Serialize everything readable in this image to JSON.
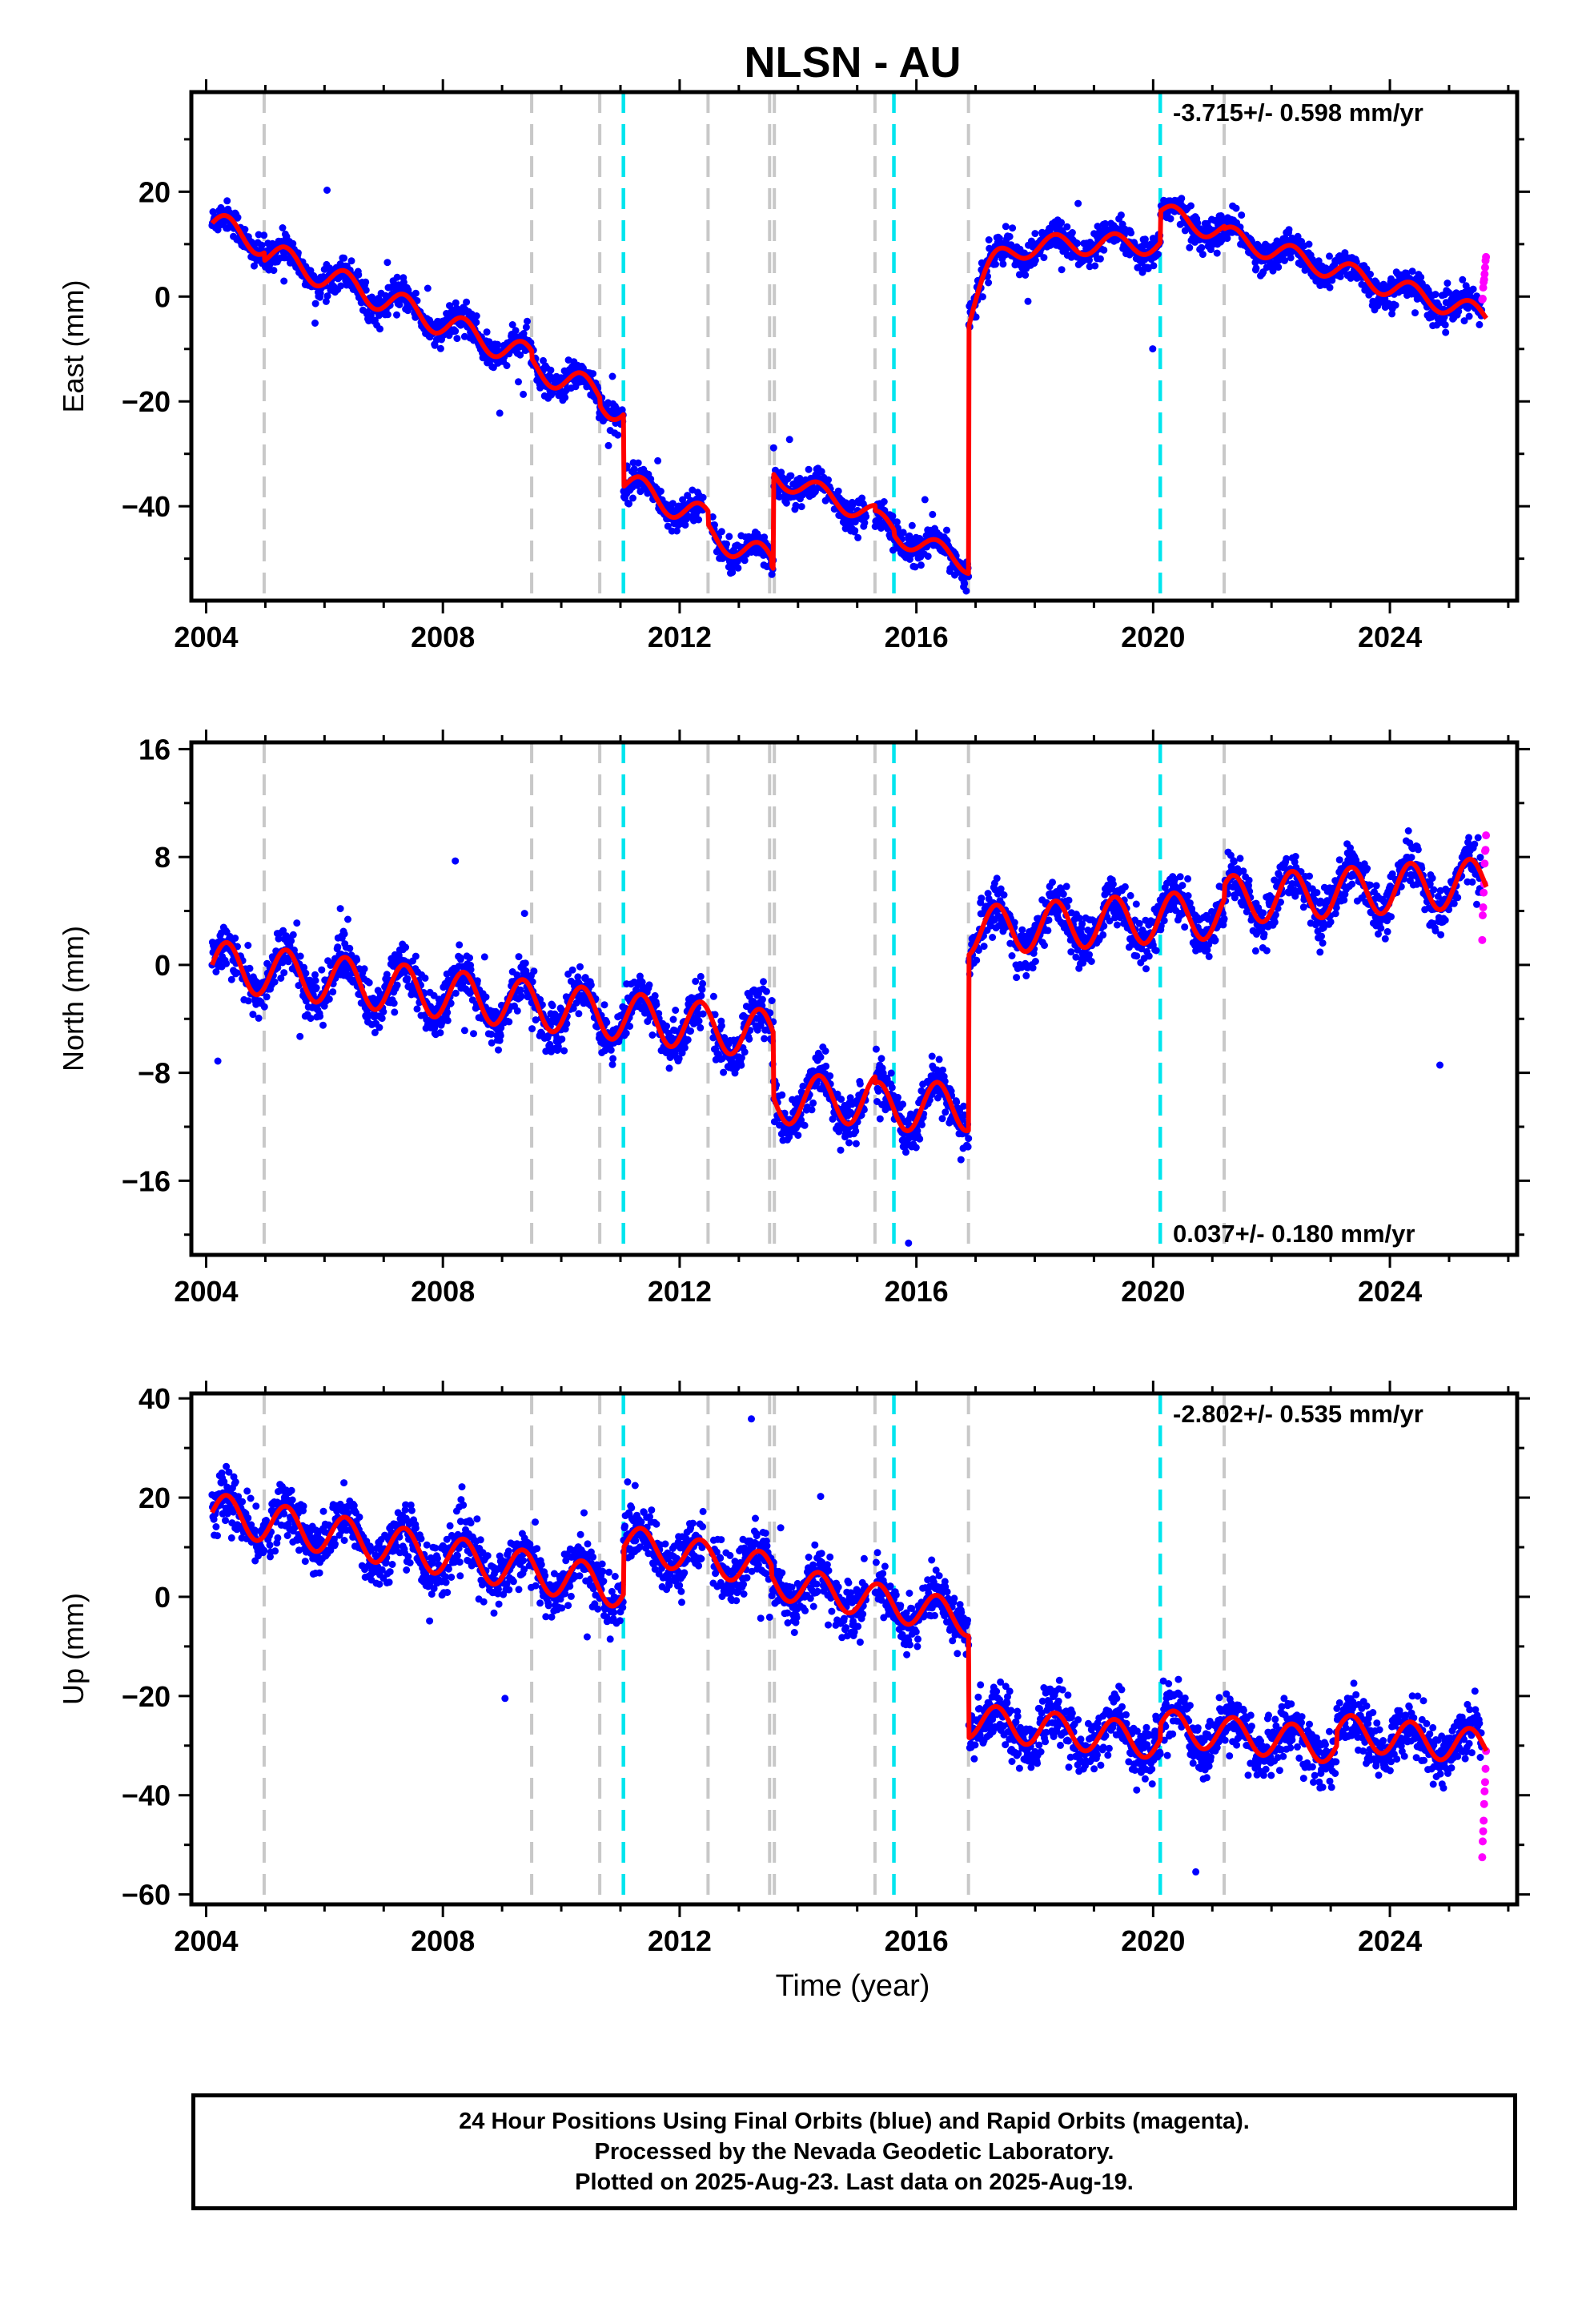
{
  "title": "NLSN - AU",
  "xlabel": "Time (year)",
  "footer": {
    "line1": "24 Hour Positions Using Final Orbits (blue) and Rapid Orbits (magenta).",
    "line2": "Processed by the Nevada Geodetic Laboratory.",
    "line3": "Plotted on 2025-Aug-23. Last data on 2025-Aug-19."
  },
  "colors": {
    "final_orbits": "#0000ff",
    "rapid_orbits": "#ff00ff",
    "model": "#ff0000",
    "equipment_change": "#c8c8c8",
    "earthquake": "#00e5ee"
  },
  "chart_data": [
    {
      "type": "scatter",
      "component": "east",
      "ylabel": "East (mm)",
      "velocity": "-3.715+/- 0.598 mm/yr",
      "velocity_position": "top-right",
      "xlim": [
        2003.75,
        2026.15
      ],
      "ylim": [
        -58,
        39
      ],
      "xticks": [
        2004,
        2008,
        2012,
        2016,
        2020,
        2024
      ],
      "yticks": [
        -40,
        -20,
        0,
        20
      ],
      "segments": [
        {
          "start": 2004.1,
          "end": 2011.05,
          "level": 14,
          "rate": -4.5,
          "amp": 2.5
        },
        {
          "start": 2011.05,
          "end": 2013.58,
          "level": -35.5,
          "rate": -5.0,
          "amp": 2.5
        },
        {
          "start": 2013.58,
          "end": 2016.88,
          "level": -34,
          "rate": -4.5,
          "amp": 2.0
        },
        {
          "start": 2016.88,
          "end": 2020.12,
          "level": 10,
          "rate": 0,
          "amp": 2.0,
          "transient": 14,
          "tau": 0.32
        },
        {
          "start": 2020.12,
          "end": 2025.63,
          "level": 16,
          "rate": -3.5,
          "amp": 2.0
        }
      ],
      "steps": [
        [
          2004.98,
          -1.5
        ],
        [
          2009.5,
          -1.5
        ],
        [
          2010.65,
          -1.5
        ],
        [
          2012.48,
          -2.5
        ],
        [
          2013.55,
          -1.5
        ],
        [
          2015.3,
          -1.0
        ],
        [
          2015.62,
          -1.0
        ],
        [
          2021.2,
          -0.5
        ]
      ],
      "noise": 2.6,
      "rapid": [
        -1,
        8
      ]
    },
    {
      "type": "scatter",
      "component": "north",
      "ylabel": "North (mm)",
      "velocity": "0.037+/- 0.180 mm/yr",
      "velocity_position": "bottom-right",
      "xlim": [
        2003.75,
        2026.15
      ],
      "ylim": [
        -21.5,
        16.5
      ],
      "xticks": [
        2004,
        2008,
        2012,
        2016,
        2020,
        2024
      ],
      "yticks": [
        -16,
        -8,
        0,
        8,
        16
      ],
      "segments": [
        {
          "start": 2004.1,
          "end": 2013.58,
          "level": 0,
          "rate": -0.55,
          "amp": 1.8
        },
        {
          "start": 2013.58,
          "end": 2016.88,
          "level": -10,
          "rate": 0,
          "amp": 1.8
        },
        {
          "start": 2016.88,
          "end": 2025.63,
          "level": 2.5,
          "rate": 0.3,
          "amp": 1.8
        }
      ],
      "steps": [
        [
          2021.2,
          1.0
        ],
        [
          2015.3,
          -0.5
        ]
      ],
      "noise": 1.6,
      "rapid": [
        2.5,
        9.5
      ]
    },
    {
      "type": "scatter",
      "component": "up",
      "ylabel": "Up (mm)",
      "velocity": "-2.802+/- 0.535 mm/yr",
      "velocity_position": "top-right",
      "xlim": [
        2003.75,
        2026.15
      ],
      "ylim": [
        -62,
        41
      ],
      "xticks": [
        2004,
        2008,
        2012,
        2016,
        2020,
        2024
      ],
      "yticks": [
        -60,
        -40,
        -20,
        0,
        20,
        40
      ],
      "segments": [
        {
          "start": 2004.1,
          "end": 2011.05,
          "level": 17,
          "rate": -2.2,
          "amp": 4.0
        },
        {
          "start": 2011.05,
          "end": 2016.88,
          "level": 11,
          "rate": -2.3,
          "amp": 3.5
        },
        {
          "start": 2016.88,
          "end": 2025.63,
          "level": -25,
          "rate": -1.3,
          "amp": 3.5
        }
      ],
      "steps": [
        [
          2013.55,
          -2.0
        ],
        [
          2020.12,
          3.0
        ],
        [
          2023.1,
          3.0
        ]
      ],
      "noise": 5.0,
      "rapid": [
        -52,
        -32
      ]
    }
  ],
  "event_lines": {
    "equipment_change": [
      2004.98,
      2009.5,
      2010.65,
      2012.48,
      2013.52,
      2013.6,
      2015.3,
      2016.88,
      2021.2
    ],
    "earthquake": [
      2011.05,
      2015.62,
      2020.12
    ]
  }
}
